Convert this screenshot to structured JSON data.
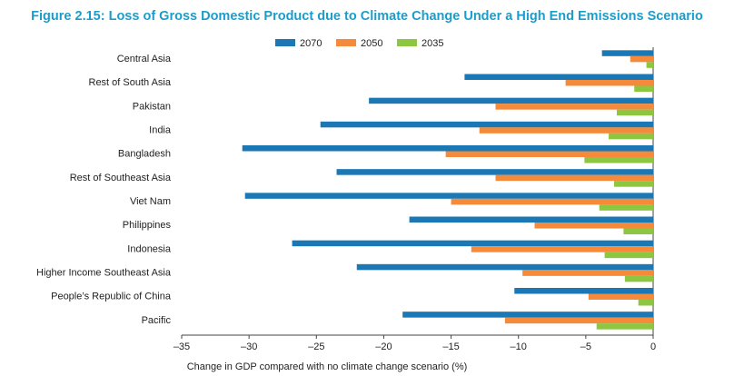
{
  "chart_data": {
    "type": "hbar",
    "title": "Figure 2.15: Loss of Gross Domestic Product due to Climate Change Under a High End Emissions Scenario",
    "x_label": "Change in GDP compared with no climate change scenario (%)",
    "categories": [
      "Central Asia",
      "Rest of South Asia",
      "Pakistan",
      "India",
      "Bangladesh",
      "Rest of Southeast Asia",
      "Viet Nam",
      "Philippines",
      "Indonesia",
      "Higher Income Southeast Asia",
      "People’s Republic of China",
      "Pacific"
    ],
    "series": [
      {
        "name": "2070",
        "color": "#1b78b5",
        "values": [
          -3.8,
          -14.0,
          -21.1,
          -24.7,
          -30.5,
          -23.5,
          -30.3,
          -18.1,
          -26.8,
          -22.0,
          -10.3,
          -18.6
        ]
      },
      {
        "name": "2050",
        "color": "#f58a3a",
        "values": [
          -1.7,
          -6.5,
          -11.7,
          -12.9,
          -15.4,
          -11.7,
          -15.0,
          -8.8,
          -13.5,
          -9.7,
          -4.8,
          -11.0
        ]
      },
      {
        "name": "2035",
        "color": "#8dc640",
        "values": [
          -0.5,
          -1.4,
          -2.7,
          -3.3,
          -5.1,
          -2.9,
          -4.0,
          -2.2,
          -3.6,
          -2.1,
          -1.1,
          -4.2
        ]
      }
    ],
    "xlim": [
      -35,
      0
    ],
    "xticks": [
      {
        "value": -35,
        "label": "–35"
      },
      {
        "value": -30,
        "label": "–30"
      },
      {
        "value": -25,
        "label": "–25"
      },
      {
        "value": -20,
        "label": "–20"
      },
      {
        "value": -15,
        "label": "–15"
      },
      {
        "value": -10,
        "label": "–10"
      },
      {
        "value": -5,
        "label": "–5"
      },
      0
    ]
  }
}
